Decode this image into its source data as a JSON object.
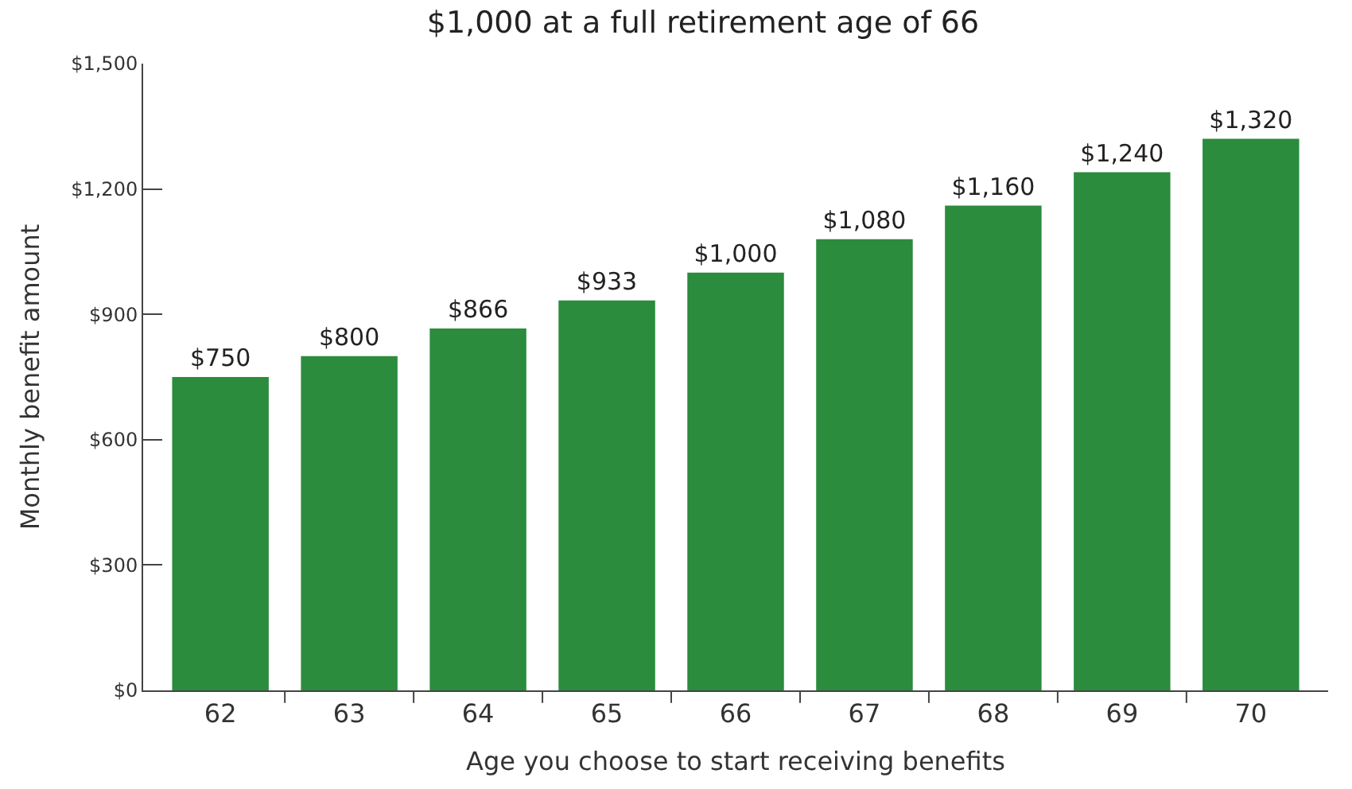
{
  "chart_data": {
    "type": "bar",
    "title": "$1,000 at a full retirement age of 66",
    "xlabel": "Age you choose to start receiving benefits",
    "ylabel": "Monthly benefit amount",
    "categories": [
      "62",
      "63",
      "64",
      "65",
      "66",
      "67",
      "68",
      "69",
      "70"
    ],
    "values": [
      750,
      800,
      866,
      933,
      1000,
      1080,
      1160,
      1240,
      1320
    ],
    "value_labels": [
      "$750",
      "$800",
      "$866",
      "$933",
      "$1,000",
      "$1,080",
      "$1,160",
      "$1,240",
      "$1,320"
    ],
    "color": "#2a8c3c",
    "ylim": [
      0,
      1500
    ],
    "yticks": [
      {
        "value": 0,
        "label": "$0"
      },
      {
        "value": 300,
        "label": "$300"
      },
      {
        "value": 600,
        "label": "$600"
      },
      {
        "value": 900,
        "label": "$900"
      },
      {
        "value": 1200,
        "label": "$1,200"
      },
      {
        "value": 1500,
        "label": "$1,500"
      }
    ],
    "legend": false
  }
}
